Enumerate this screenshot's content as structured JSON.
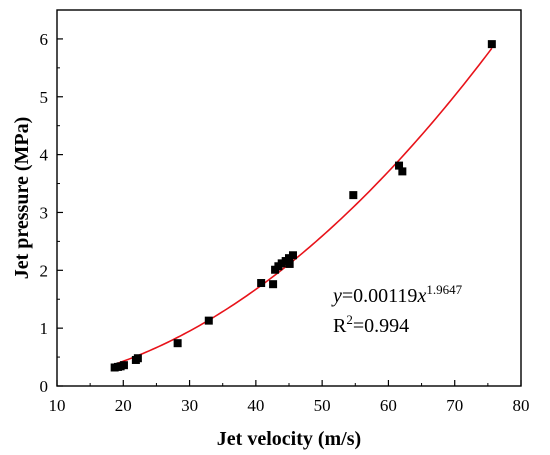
{
  "chart_data": {
    "type": "scatter",
    "title": "",
    "xlabel": "Jet velocity (m/s)",
    "ylabel": "Jet pressure (MPa)",
    "xlim": [
      10,
      80
    ],
    "ylim": [
      0,
      6.5
    ],
    "xticks": [
      10,
      20,
      30,
      40,
      50,
      60,
      70,
      80
    ],
    "yticks": [
      0,
      1,
      2,
      3,
      4,
      5,
      6
    ],
    "grid": false,
    "series": [
      {
        "marker": "square",
        "color": "#000000",
        "points": [
          {
            "x": 18.7,
            "y": 0.32
          },
          {
            "x": 19.2,
            "y": 0.33
          },
          {
            "x": 19.6,
            "y": 0.34
          },
          {
            "x": 20.1,
            "y": 0.36
          },
          {
            "x": 21.9,
            "y": 0.45
          },
          {
            "x": 22.2,
            "y": 0.48
          },
          {
            "x": 28.2,
            "y": 0.74
          },
          {
            "x": 32.9,
            "y": 1.13
          },
          {
            "x": 40.8,
            "y": 1.78
          },
          {
            "x": 42.6,
            "y": 1.76
          },
          {
            "x": 42.9,
            "y": 2.01
          },
          {
            "x": 43.4,
            "y": 2.07
          },
          {
            "x": 43.9,
            "y": 2.12
          },
          {
            "x": 44.5,
            "y": 2.16
          },
          {
            "x": 45.0,
            "y": 2.21
          },
          {
            "x": 45.1,
            "y": 2.11
          },
          {
            "x": 45.6,
            "y": 2.26
          },
          {
            "x": 54.7,
            "y": 3.3
          },
          {
            "x": 61.6,
            "y": 3.81
          },
          {
            "x": 62.1,
            "y": 3.71
          },
          {
            "x": 75.6,
            "y": 5.91
          }
        ]
      }
    ],
    "fit": {
      "color": "#e8131a",
      "coef": 0.00119,
      "exponent": 1.9647,
      "x_range": [
        18.7,
        75.6
      ]
    },
    "annotation": {
      "eq_var": "y",
      "eq_mid": "=0.00119",
      "eq_x": "x",
      "eq_exp": "1.9647",
      "r2_base": "R",
      "r2_sup": "2",
      "r2_rest": "=0.994"
    }
  }
}
